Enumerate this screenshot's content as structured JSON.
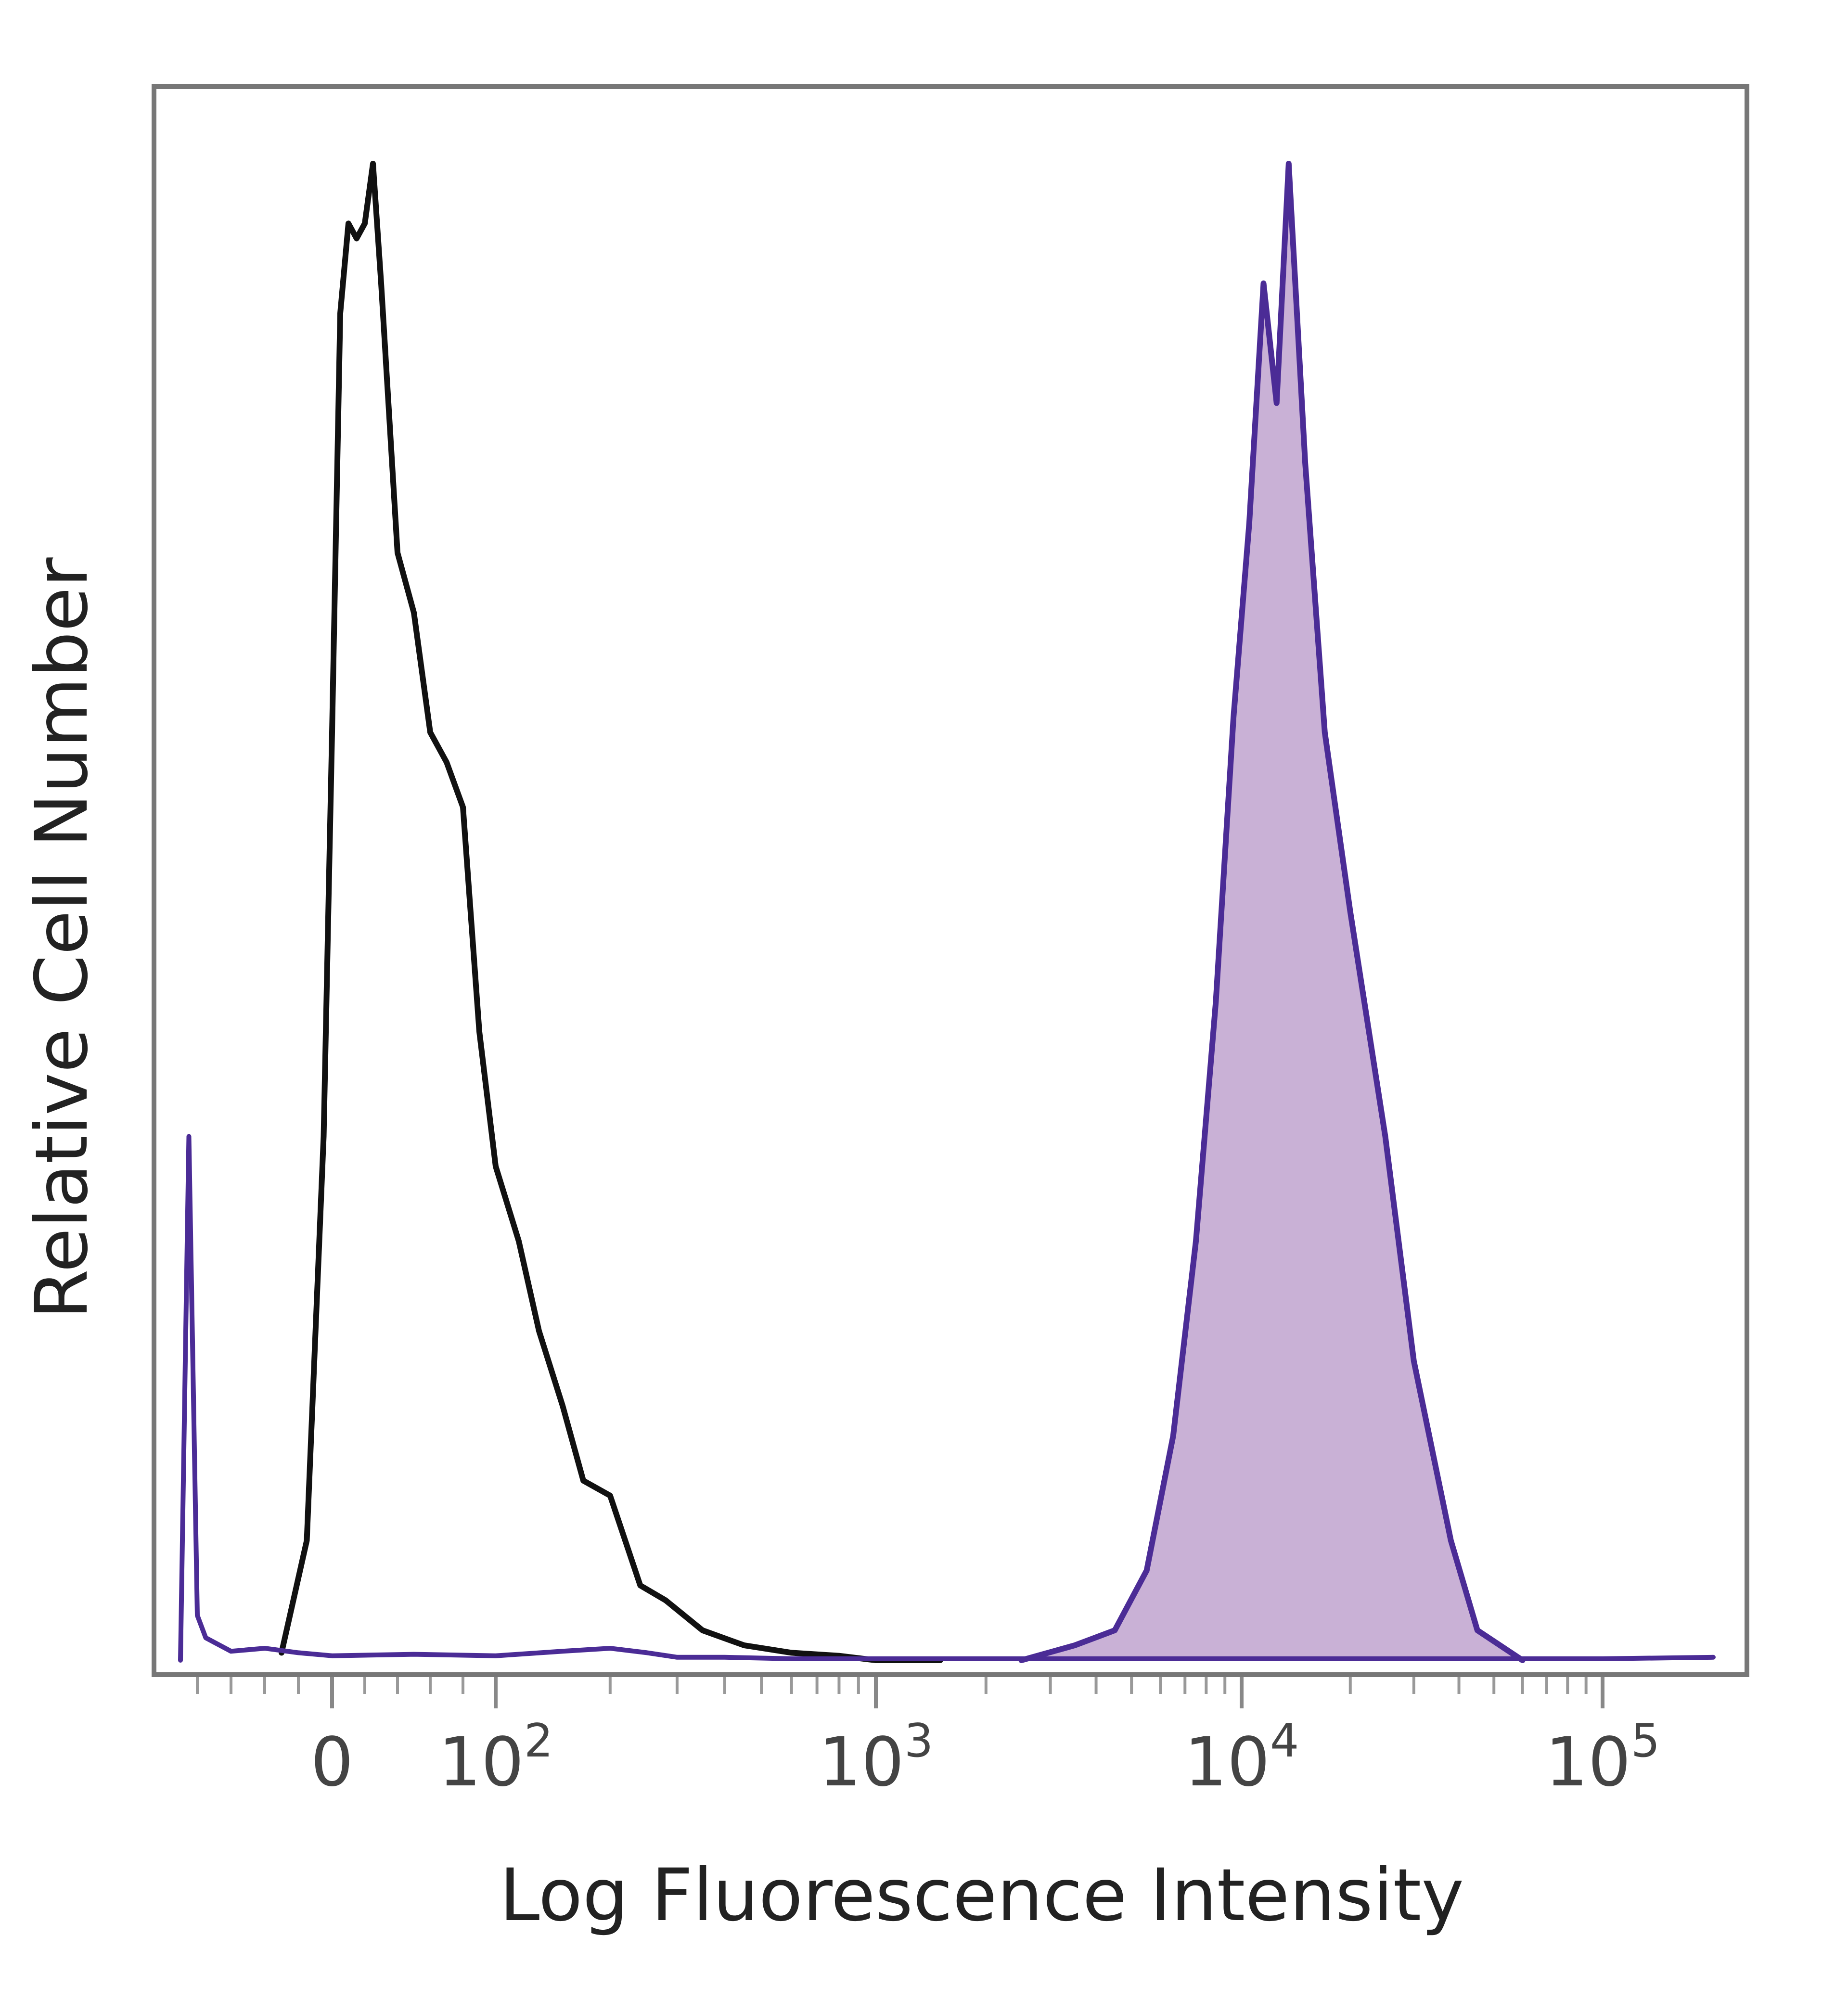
{
  "chart_data": {
    "type": "area",
    "title": "",
    "xlabel": "Log Fluorescence Intensity",
    "ylabel": "Relative Cell Number",
    "x_scale": "biexponential",
    "xlim": [
      -100,
      200000
    ],
    "ylim": [
      0,
      100
    ],
    "grid": false,
    "x_ticks": [
      {
        "value": 0,
        "label": "0"
      },
      {
        "value": 100,
        "label": "10",
        "exponent": "2"
      },
      {
        "value": 1000,
        "label": "10",
        "exponent": "3"
      },
      {
        "value": 10000,
        "label": "10",
        "exponent": "4"
      },
      {
        "value": 100000,
        "label": "10",
        "exponent": "5"
      }
    ],
    "colors": {
      "control": "#111111",
      "stained_line": "#4b2c96",
      "stained_fill": "#c9b1d6"
    },
    "series": [
      {
        "style": "outline",
        "color": "#111111",
        "x": [
          -30,
          -15,
          -5,
          0,
          5,
          10,
          15,
          20,
          25,
          30,
          40,
          50,
          60,
          70,
          80,
          90,
          100,
          115,
          130,
          150,
          170,
          200,
          240,
          280,
          350,
          450,
          600,
          800,
          1000,
          1500
        ],
        "y": [
          0.5,
          8,
          35,
          62,
          90,
          96,
          95,
          96,
          100,
          92,
          74,
          70,
          62,
          60,
          57,
          42,
          33,
          28,
          22,
          17,
          12,
          11,
          5,
          4,
          2,
          1,
          0.5,
          0.3,
          0,
          0
        ]
      },
      {
        "style": "filled",
        "color": "#4b2c96",
        "x": [
          2500,
          3500,
          4500,
          5500,
          6500,
          7500,
          8500,
          9500,
          10500,
          11500,
          12500,
          13500,
          15000,
          17000,
          20000,
          25000,
          30000,
          38000,
          45000,
          60000
        ],
        "y": [
          0,
          1,
          2,
          6,
          15,
          28,
          44,
          63,
          76,
          92,
          84,
          100,
          80,
          62,
          50,
          35,
          20,
          8,
          2,
          0
        ]
      },
      {
        "style": "baseline",
        "color": "#4b2c96",
        "x": [
          -90,
          -85,
          -80,
          -75,
          -70,
          -60,
          -40,
          -20,
          0,
          50,
          100,
          150,
          200,
          250,
          300,
          400,
          600,
          1000,
          3000,
          10000,
          50000,
          100000,
          200000
        ],
        "y": [
          0,
          35,
          3,
          1.5,
          1.2,
          0.6,
          0.8,
          0.5,
          0.3,
          0.4,
          0.3,
          0.6,
          0.8,
          0.5,
          0.2,
          0.2,
          0.1,
          0.1,
          0.1,
          0.1,
          0.1,
          0.1,
          0.2
        ]
      }
    ]
  }
}
